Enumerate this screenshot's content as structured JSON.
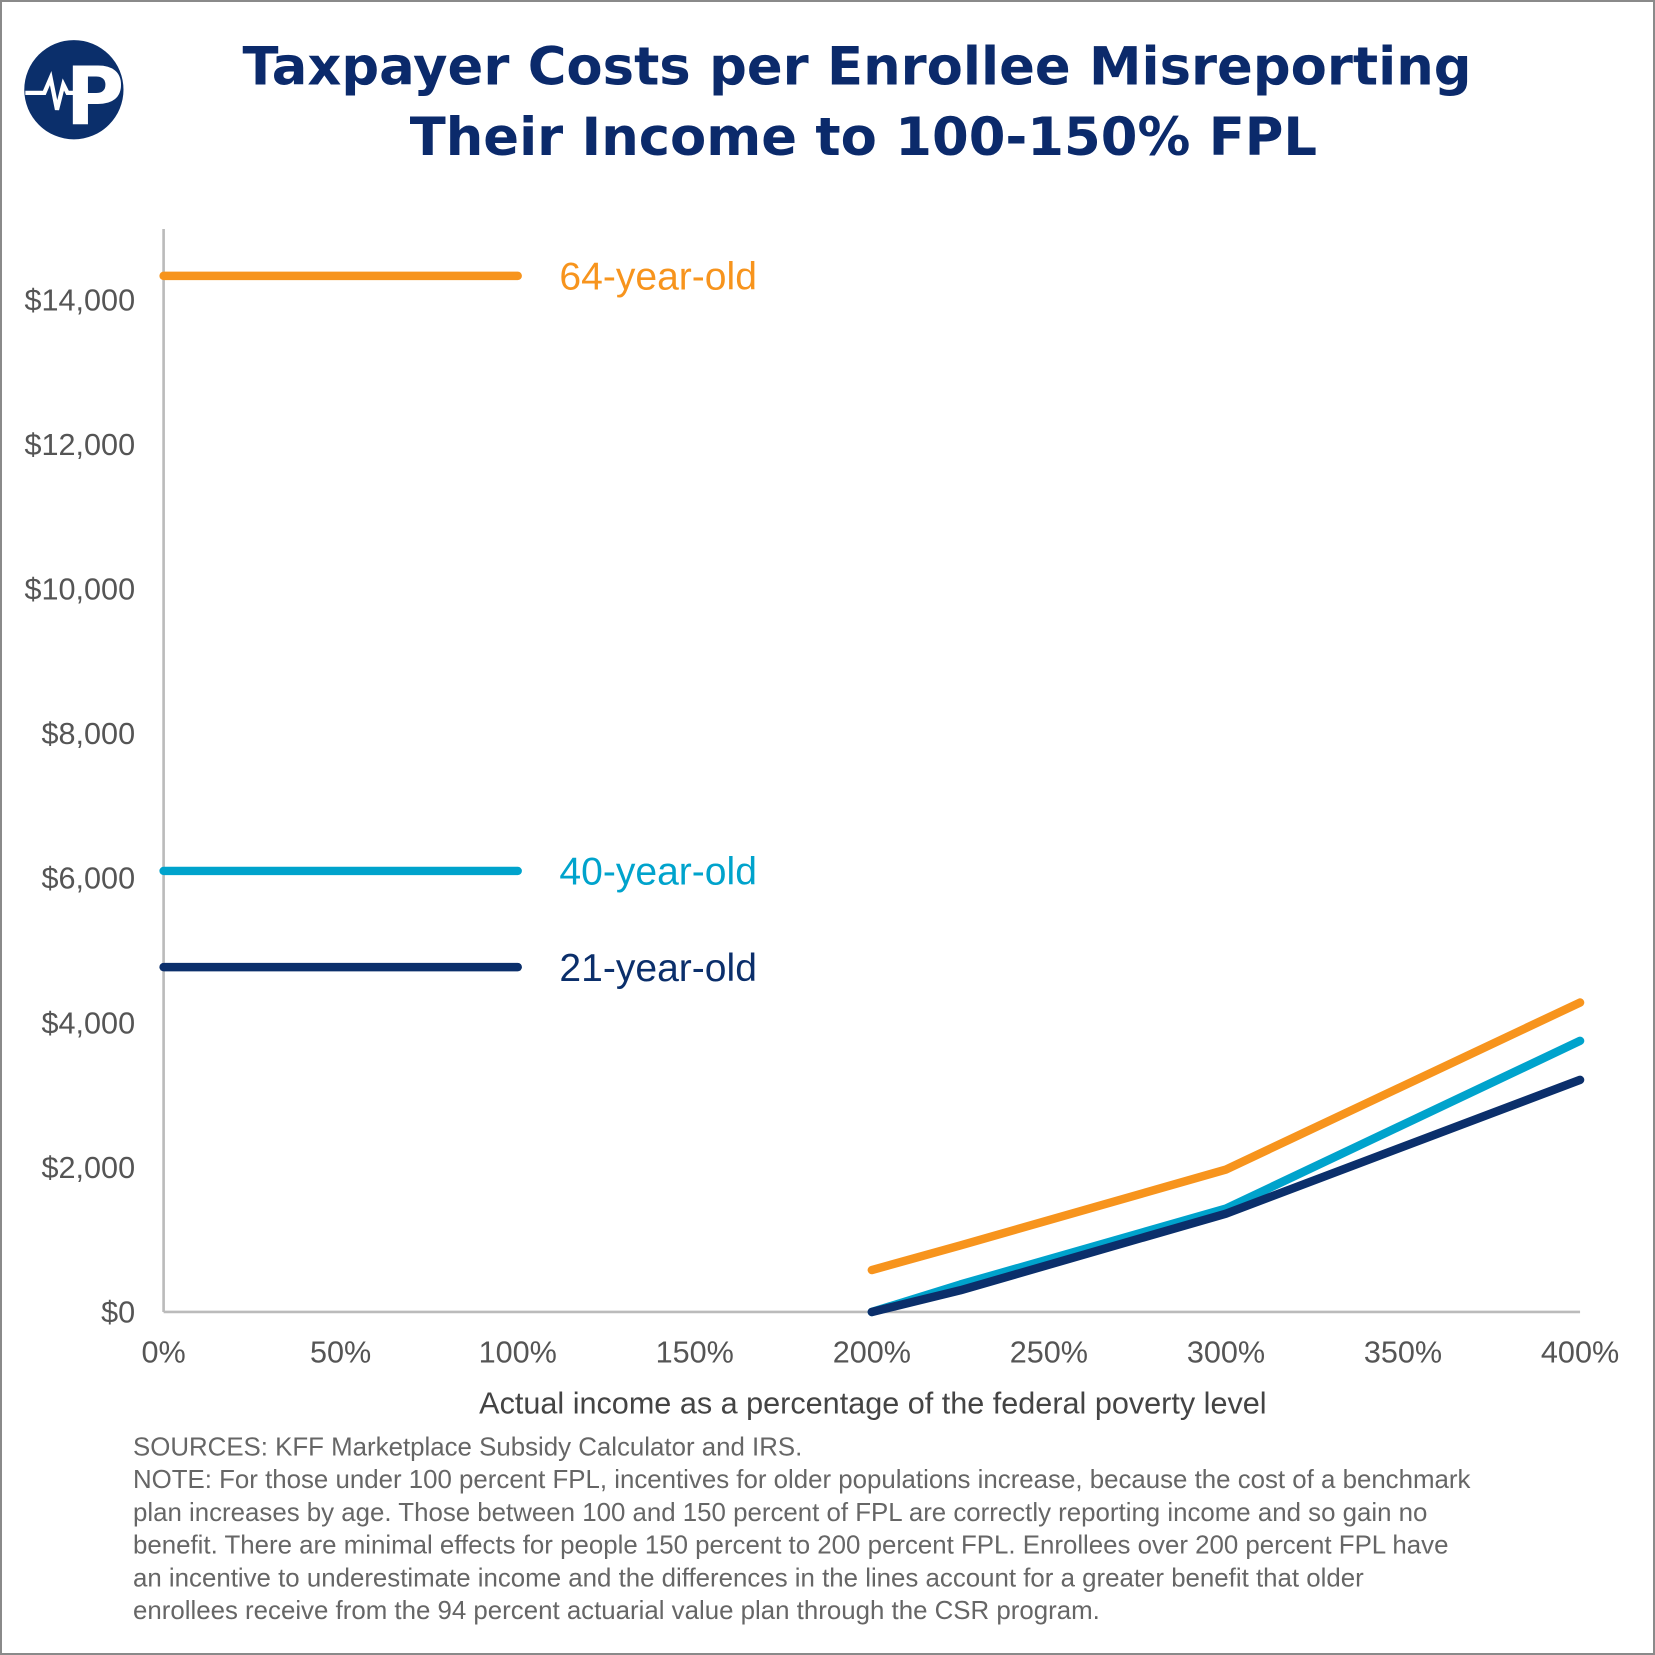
{
  "chart_data": {
    "type": "line",
    "title": "Taxpayer Costs per Enrollee Misreporting Their Income to 100-150% FPL",
    "title_lines": [
      "Taxpayer Costs per Enrollee Misreporting",
      "Their Income to 100-150% FPL"
    ],
    "xlabel": "Actual income as a percentage of the federal poverty level",
    "ylabel": "",
    "xlim": [
      0,
      400
    ],
    "ylim": [
      0,
      15000
    ],
    "x_ticks": [
      "0%",
      "50%",
      "100%",
      "150%",
      "200%",
      "250%",
      "300%",
      "350%",
      "400%"
    ],
    "x_tick_values": [
      0,
      50,
      100,
      150,
      200,
      250,
      300,
      350,
      400
    ],
    "y_ticks": [
      "$0",
      "$2,000",
      "$4,000",
      "$6,000",
      "$8,000",
      "$10,000",
      "$12,000",
      "$14,000"
    ],
    "y_tick_values": [
      0,
      2000,
      4000,
      6000,
      8000,
      10000,
      12000,
      14000
    ],
    "grid": false,
    "legend": "inline labels",
    "series": [
      {
        "name": "64-year-old",
        "color": "#f7941d",
        "segments": [
          [
            [
              0,
              14330
            ],
            [
              100,
              14330
            ]
          ],
          [
            [
              200,
              580
            ],
            [
              225,
              920
            ],
            [
              300,
              1970
            ],
            [
              400,
              4280
            ]
          ]
        ]
      },
      {
        "name": "40-year-old",
        "color": "#00a3cc",
        "segments": [
          [
            [
              0,
              6100
            ],
            [
              100,
              6100
            ]
          ],
          [
            [
              200,
              0
            ],
            [
              225,
              380
            ],
            [
              300,
              1430
            ],
            [
              400,
              3750
            ]
          ]
        ]
      },
      {
        "name": "21-year-old",
        "color": "#0b2f6b",
        "segments": [
          [
            [
              0,
              4770
            ],
            [
              100,
              4770
            ]
          ],
          [
            [
              200,
              0
            ],
            [
              225,
              300
            ],
            [
              300,
              1360
            ],
            [
              400,
              3210
            ]
          ]
        ]
      }
    ]
  },
  "footer": {
    "sources": "SOURCES: KFF Marketplace Subsidy Calculator and IRS.",
    "note_lines": [
      "NOTE: For those under 100 percent FPL, incentives for older populations increase, because the cost of a benchmark",
      "plan increases by age. Those between 100 and 150 percent of FPL are correctly reporting income and so gain no",
      "benefit. There are minimal effects for people 150 percent to 200 percent FPL. Enrollees over 200 percent FPL have",
      "an incentive to underestimate income and the differences in the lines account for a greater benefit that older",
      "enrollees receive from the 94 percent actuarial value plan through the CSR program."
    ]
  },
  "logo": {
    "letter": "P",
    "color": "#0b2f6b"
  }
}
